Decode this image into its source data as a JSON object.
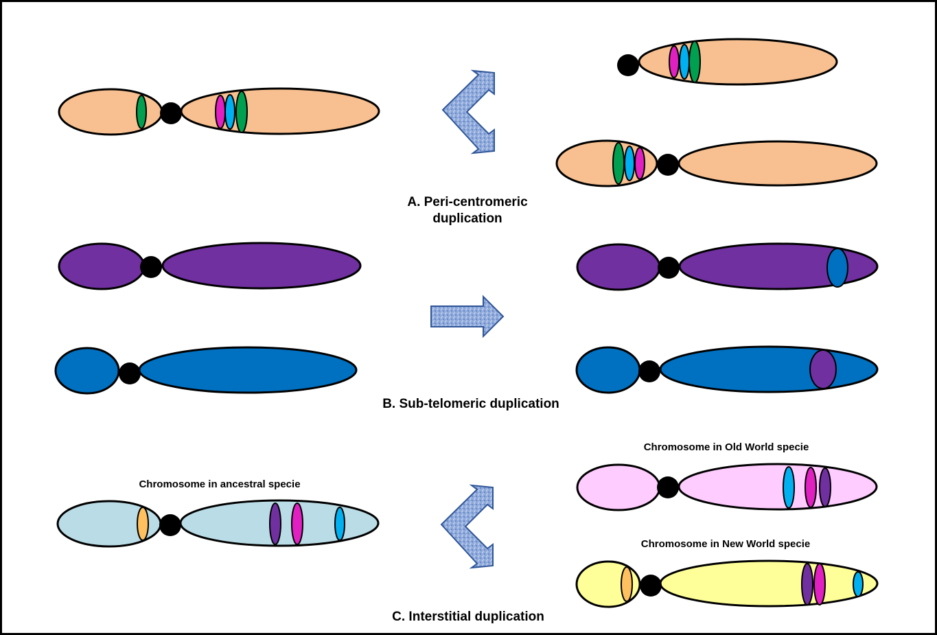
{
  "colors": {
    "orange": "#F8C090",
    "purple": "#7030A0",
    "blue": "#0070C0",
    "lightblue": "#BADCE6",
    "pink": "#FFCCFF",
    "yellow": "#FFFF99",
    "green": "#00A050",
    "magenta": "#E020C0",
    "cyan": "#00B0F0",
    "gold": "#FFC060",
    "violet": "#7030A0",
    "arrow": "#8EA9DB",
    "arrow_stroke": "#2F5597"
  },
  "sections": {
    "a": {
      "label_line1": "A. Peri-centromeric",
      "label_line2": "duplication"
    },
    "b": {
      "label": "B. Sub-telomeric duplication"
    },
    "c": {
      "label": "C. Interstitial duplication",
      "ancestral_label": "Chromosome in ancestral specie",
      "old_world_label": "Chromosome in Old World specie",
      "new_world_label": "Chromosome in New World specie"
    }
  }
}
